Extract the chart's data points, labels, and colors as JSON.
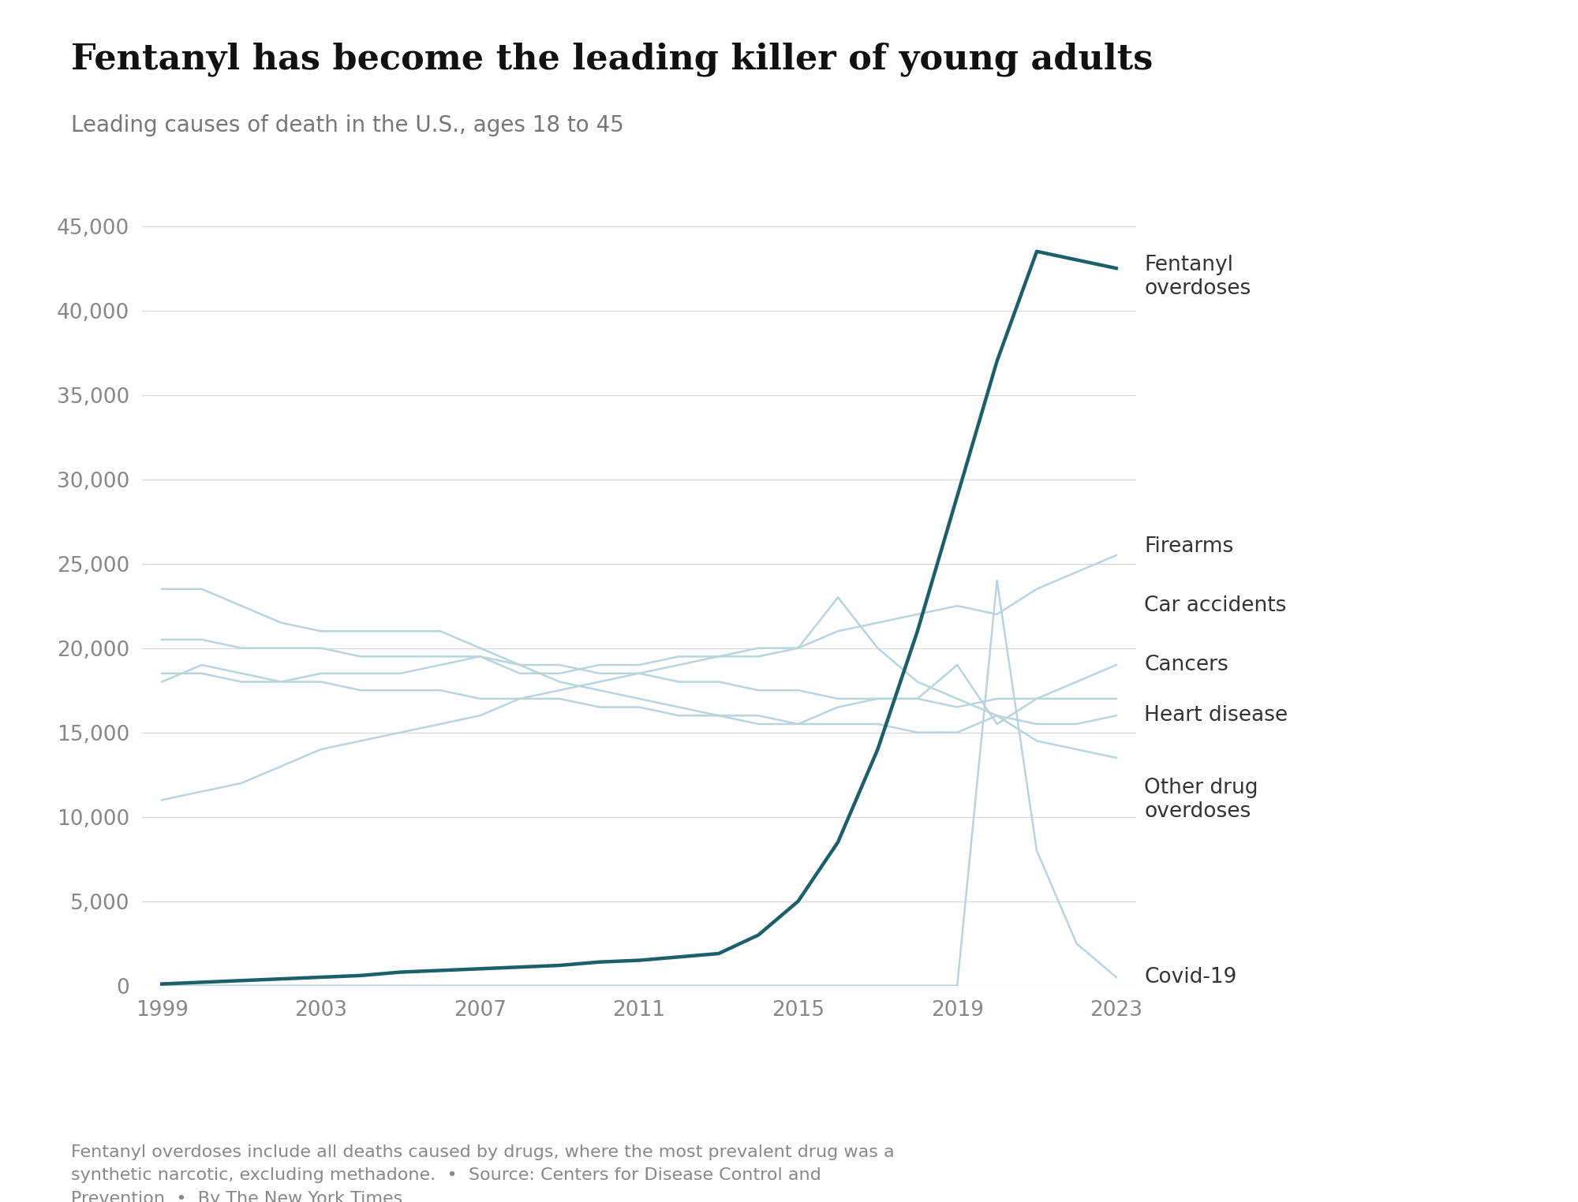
{
  "title": "Fentanyl has become the leading killer of young adults",
  "subtitle": "Leading causes of death in the U.S., ages 18 to 45",
  "footnote": "Fentanyl overdoses include all deaths caused by drugs, where the most prevalent drug was a\nsynthetic narcotic, excluding methadone.  •  Source: Centers for Disease Control and\nPrevention  •  By The New York Times",
  "background_color": "#ffffff",
  "fentanyl_color": "#1a5f6a",
  "other_color": "#b8d4dc",
  "years": [
    1999,
    2000,
    2001,
    2002,
    2003,
    2004,
    2005,
    2006,
    2007,
    2008,
    2009,
    2010,
    2011,
    2012,
    2013,
    2014,
    2015,
    2016,
    2017,
    2018,
    2019,
    2020,
    2021,
    2022,
    2023
  ],
  "fentanyl": [
    100,
    200,
    300,
    400,
    500,
    600,
    800,
    900,
    1000,
    1100,
    1200,
    1400,
    1500,
    1700,
    1900,
    3000,
    5000,
    8500,
    14000,
    21000,
    29000,
    37000,
    43500,
    43000,
    42500
  ],
  "firearms": [
    18000,
    19000,
    18500,
    18000,
    18500,
    18500,
    18500,
    19000,
    19500,
    18500,
    18500,
    19000,
    19000,
    19500,
    19500,
    19500,
    20000,
    21000,
    21500,
    22000,
    22500,
    22000,
    23500,
    24500,
    25500
  ],
  "car_accidents": [
    23500,
    23500,
    22500,
    21500,
    21000,
    21000,
    21000,
    21000,
    20000,
    19000,
    18000,
    17500,
    17000,
    16500,
    16000,
    16000,
    15500,
    16500,
    17000,
    17000,
    19000,
    15500,
    17000,
    18000,
    19000
  ],
  "cancers": [
    20500,
    20500,
    20000,
    20000,
    20000,
    19500,
    19500,
    19500,
    19500,
    19000,
    19000,
    18500,
    18500,
    18000,
    18000,
    17500,
    17500,
    17000,
    17000,
    17000,
    16500,
    17000,
    17000,
    17000,
    17000
  ],
  "heart_disease": [
    18500,
    18500,
    18000,
    18000,
    18000,
    17500,
    17500,
    17500,
    17000,
    17000,
    17000,
    16500,
    16500,
    16000,
    16000,
    15500,
    15500,
    15500,
    15500,
    15000,
    15000,
    16000,
    15500,
    15500,
    16000
  ],
  "other_drug": [
    11000,
    11500,
    12000,
    13000,
    14000,
    14500,
    15000,
    15500,
    16000,
    17000,
    17500,
    18000,
    18500,
    19000,
    19500,
    20000,
    20000,
    23000,
    20000,
    18000,
    17000,
    16000,
    14500,
    14000,
    13500
  ],
  "covid": [
    0,
    0,
    0,
    0,
    0,
    0,
    0,
    0,
    0,
    0,
    0,
    0,
    0,
    0,
    0,
    0,
    0,
    0,
    0,
    0,
    0,
    24000,
    8000,
    2500,
    500
  ],
  "ylim": [
    0,
    47000
  ],
  "yticks": [
    0,
    5000,
    10000,
    15000,
    20000,
    25000,
    30000,
    35000,
    40000,
    45000
  ],
  "xticks": [
    1999,
    2003,
    2007,
    2011,
    2015,
    2019,
    2023
  ],
  "label_fontsize": 19,
  "tick_fontsize": 19,
  "title_fontsize": 32,
  "subtitle_fontsize": 20,
  "footnote_fontsize": 16
}
